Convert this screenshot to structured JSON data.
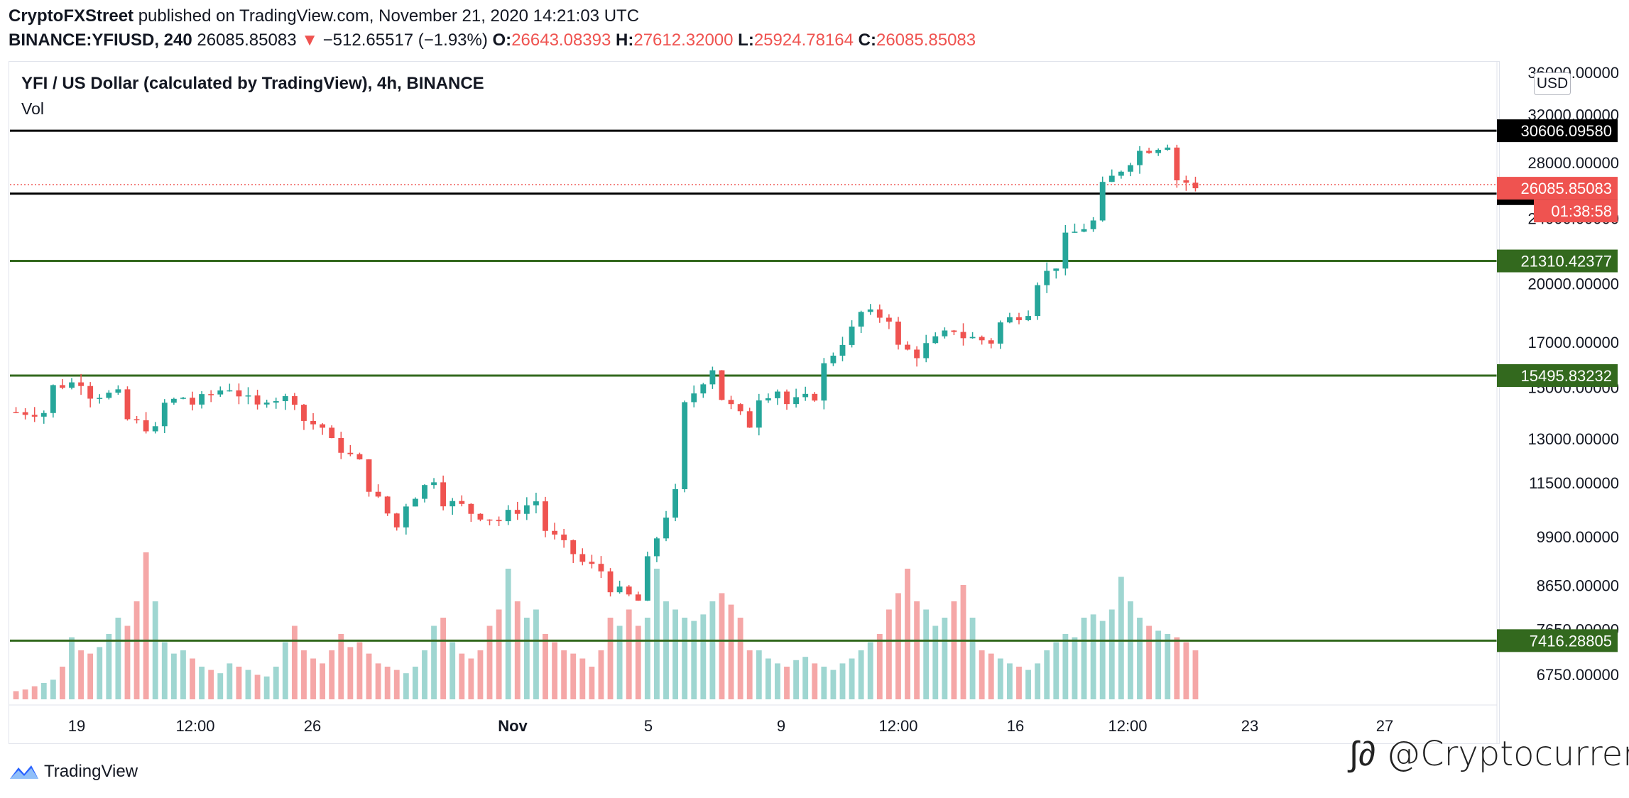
{
  "header": {
    "publisher": "CryptoFXStreet",
    "published_text": "published on TradingView.com, November 21, 2020 14:21:03 UTC",
    "symbol": "BINANCE:YFIUSD, 240",
    "last": "26085.85083",
    "change": "−512.65517 (−1.93%)",
    "open_label": "O:",
    "open": "26643.08393",
    "high_label": "H:",
    "high": "27612.32000",
    "low_label": "L:",
    "low": "25924.78164",
    "close_label": "C:",
    "close": "26085.85083"
  },
  "chart_title": "YFI / US Dollar (calculated by TradingView), 4h, BINANCE",
  "volume_label": "Vol",
  "currency_badge": "USD",
  "footer": {
    "brand": "TradingView",
    "watermark": "@Cryptocurrency"
  },
  "colors": {
    "up": "#26a69a",
    "down": "#ef5350",
    "up_vol": "#9fd6d1",
    "down_vol": "#f5a7a7",
    "support": "#33691e",
    "resistance": "#000000"
  },
  "icons": {
    "tradingview_logo": "tradingview-logo-icon",
    "change_arrow": "down-triangle-icon"
  },
  "chart_data": {
    "type": "candlestick",
    "interval": "4h",
    "log_scale": true,
    "x_axis": {
      "tick_labels": [
        "19",
        "12:00",
        "26",
        "Nov",
        "5",
        "9",
        "12:00",
        "16",
        "12:00",
        "23",
        "27"
      ]
    },
    "y_axis": {
      "tick_labels": [
        "36000.00000",
        "32000.00000",
        "28000.00000",
        "24000.00000",
        "20000.00000",
        "17000.00000",
        "15000.00000",
        "13000.00000",
        "11500.00000",
        "9900.00000",
        "8650.00000",
        "7650.00000",
        "6750.00000"
      ],
      "range": [
        6300,
        37000
      ]
    },
    "horizontal_levels": [
      {
        "price": 30606.0958,
        "label": "30606.09580",
        "color": "#000000"
      },
      {
        "price": 25693.91792,
        "label": "25693.91792",
        "color": "#000000"
      },
      {
        "price": 21310.42377,
        "label": "21310.42377",
        "color": "#33691e"
      },
      {
        "price": 15495.83232,
        "label": "15495.83232",
        "color": "#33691e"
      },
      {
        "price": 7416.28805,
        "label": "7416.28805",
        "color": "#33691e"
      }
    ],
    "last_price": {
      "price": 26085.85083,
      "label": "26085.85083",
      "countdown": "01:38:58",
      "color": "#ef5350"
    },
    "price_path": [
      [
        14000,
        14000
      ],
      [
        15000,
        15300
      ],
      [
        14700,
        14700
      ],
      [
        13800,
        13300
      ],
      [
        14200,
        14700
      ],
      [
        14300,
        15000
      ],
      [
        15100,
        14100
      ],
      [
        14600,
        14500
      ],
      [
        13800,
        13300
      ],
      [
        12900,
        12000
      ],
      [
        11500,
        10000
      ],
      [
        10700,
        11700
      ],
      [
        11000,
        10700
      ],
      [
        10600,
        10300
      ],
      [
        10500,
        11000
      ],
      [
        10200,
        9400
      ],
      [
        9300,
        8900
      ],
      [
        8600,
        8200
      ],
      [
        9100,
        11500
      ],
      [
        14000,
        16000
      ],
      [
        14800,
        13500
      ],
      [
        14500,
        15000
      ],
      [
        14300,
        14700
      ],
      [
        15700,
        17800
      ],
      [
        18500,
        18200
      ],
      [
        16900,
        16300
      ],
      [
        16800,
        17800
      ],
      [
        17300,
        17000
      ],
      [
        17800,
        18600
      ],
      [
        19800,
        21500
      ],
      [
        22700,
        24000
      ],
      [
        26000,
        28500
      ],
      [
        28800,
        29600
      ],
      [
        26900,
        26085.85
      ]
    ],
    "volume_range": [
      0,
      60000
    ],
    "volume_series_shape": [
      0.05,
      0.06,
      0.08,
      0.1,
      0.12,
      0.2,
      0.38,
      0.3,
      0.28,
      0.32,
      0.4,
      0.5,
      0.45,
      0.6,
      0.9,
      0.6,
      0.35,
      0.28,
      0.3,
      0.25,
      0.2,
      0.18,
      0.16,
      0.22,
      0.2,
      0.18,
      0.15,
      0.14,
      0.2,
      0.35,
      0.45,
      0.3,
      0.25,
      0.22,
      0.3,
      0.4,
      0.32,
      0.35,
      0.28,
      0.22,
      0.2,
      0.18,
      0.16,
      0.2,
      0.3,
      0.45,
      0.5,
      0.35,
      0.28,
      0.25,
      0.3,
      0.45,
      0.55,
      0.8,
      0.6,
      0.5,
      0.55,
      0.4,
      0.35,
      0.3,
      0.28,
      0.25,
      0.2,
      0.3,
      0.5,
      0.45,
      0.55,
      0.45,
      0.5,
      0.8,
      0.6,
      0.55,
      0.5,
      0.48,
      0.52,
      0.6,
      0.65,
      0.58,
      0.5,
      0.3,
      0.3,
      0.25,
      0.22,
      0.2,
      0.24,
      0.26,
      0.22,
      0.2,
      0.18,
      0.22,
      0.25,
      0.3,
      0.35,
      0.4,
      0.55,
      0.65,
      0.8,
      0.6,
      0.55,
      0.45,
      0.5,
      0.6,
      0.7,
      0.5,
      0.3,
      0.28,
      0.25,
      0.22,
      0.2,
      0.18,
      0.22,
      0.3,
      0.35,
      0.4,
      0.38,
      0.5,
      0.52,
      0.48,
      0.55,
      0.75,
      0.6,
      0.5,
      0.45,
      0.42,
      0.4,
      0.38,
      0.35,
      0.3
    ]
  }
}
